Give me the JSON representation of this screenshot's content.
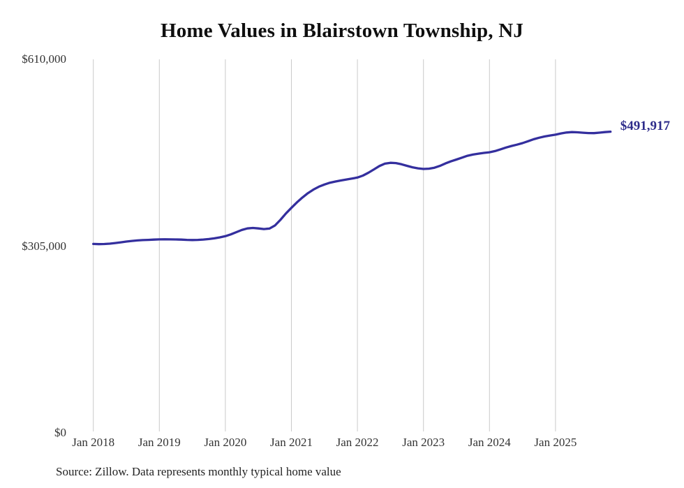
{
  "title": "Home Values in Blairstown Township, NJ",
  "source_note": "Source: Zillow. Data represents monthly typical home value",
  "colors": {
    "line": "#342f9e",
    "end_label": "#2d2b8a",
    "gridline": "#cacaca",
    "title_text": "#0f0f0f",
    "axis_text": "#333333",
    "background": "#ffffff"
  },
  "chart_data": {
    "type": "line",
    "title": "Home Values in Blairstown Township, NJ",
    "frequency": "monthly",
    "start_month": "2018-01",
    "end_month": "2025-11",
    "unit": "USD",
    "ylim": [
      0,
      610000
    ],
    "grid": "vertical-only",
    "legend": "none",
    "x_ticks": [
      "Jan 2018",
      "Jan 2019",
      "Jan 2020",
      "Jan 2021",
      "Jan 2022",
      "Jan 2023",
      "Jan 2024",
      "Jan 2025"
    ],
    "y_ticks": [
      {
        "label": "$610,000",
        "value": 610000
      },
      {
        "label": "$305,000",
        "value": 305000
      },
      {
        "label": "$0",
        "value": 0
      }
    ],
    "last_value_label": "$491,917",
    "last_value": 491917,
    "series": [
      {
        "name": "Typical home value",
        "values": [
          308500,
          308200,
          308400,
          309000,
          310000,
          311200,
          312400,
          313400,
          314200,
          314800,
          315200,
          315600,
          316000,
          316100,
          316000,
          315800,
          315600,
          315200,
          314900,
          315100,
          315700,
          316500,
          317600,
          319200,
          321200,
          324200,
          327800,
          331300,
          333800,
          334600,
          333800,
          332800,
          333600,
          338500,
          347800,
          358300,
          367500,
          376400,
          384300,
          391400,
          397200,
          402000,
          405600,
          408500,
          410500,
          412200,
          413800,
          415300,
          417000,
          420200,
          424800,
          430300,
          435800,
          439600,
          441000,
          440600,
          438600,
          436100,
          433700,
          432000,
          431000,
          431400,
          433000,
          436000,
          440000,
          443400,
          446400,
          449500,
          452500,
          454500,
          456000,
          457200,
          458200,
          460200,
          463000,
          466000,
          468500,
          470700,
          473200,
          476200,
          479500,
          482000,
          484000,
          485600,
          487000,
          489000,
          490500,
          491200,
          490800,
          490200,
          489600,
          489500,
          490300,
          491200,
          491917
        ]
      }
    ]
  }
}
